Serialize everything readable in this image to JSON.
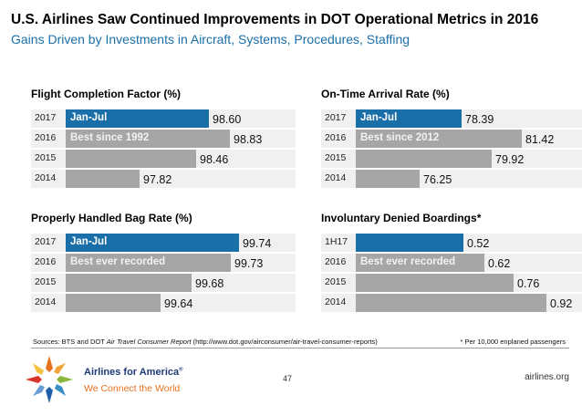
{
  "header": {
    "title": "U.S. Airlines Saw Continued Improvements in DOT Operational Metrics in 2016",
    "subtitle": "Gains Driven by Investments in Aircraft, Systems, Procedures, Staffing"
  },
  "colors": {
    "highlight": "#1b6fa8",
    "bar": "#a6a6a6",
    "track": "#f0f0f0",
    "brand": "#1f3b78",
    "tagline": "#e8711e"
  },
  "chart_data": [
    {
      "type": "bar",
      "orientation": "horizontal",
      "title": "Flight Completion Factor (%)",
      "categories": [
        "2017",
        "2016",
        "2015",
        "2014"
      ],
      "values": [
        98.6,
        98.83,
        98.46,
        97.82
      ],
      "value_labels": [
        "98.60",
        "98.83",
        "98.46",
        "97.82"
      ],
      "annotations": [
        "Jan-Jul",
        "Best since 1992",
        "",
        ""
      ],
      "highlight": [
        true,
        false,
        false,
        false
      ],
      "scale": "linear",
      "vmin": 97.0,
      "vmax": 99.2
    },
    {
      "type": "bar",
      "orientation": "horizontal",
      "title": "On-Time Arrival Rate (%)",
      "categories": [
        "2017",
        "2016",
        "2015",
        "2014"
      ],
      "values": [
        78.39,
        81.42,
        79.92,
        76.25
      ],
      "value_labels": [
        "78.39",
        "81.42",
        "79.92",
        "76.25"
      ],
      "annotations": [
        "Jan-Jul",
        "Best since 2012",
        "",
        ""
      ],
      "highlight": [
        true,
        false,
        false,
        false
      ],
      "scale": "linear",
      "vmin": 73.0,
      "vmax": 83.0
    },
    {
      "type": "bar",
      "orientation": "horizontal",
      "title": "Properly Handled Bag Rate (%)",
      "categories": [
        "2017",
        "2016",
        "2015",
        "2014"
      ],
      "values": [
        99.74,
        99.73,
        99.68,
        99.64
      ],
      "value_labels": [
        "99.74",
        "99.73",
        "99.68",
        "99.64"
      ],
      "annotations": [
        "Jan-Jul",
        "Best ever recorded",
        "",
        ""
      ],
      "highlight": [
        true,
        false,
        false,
        false
      ],
      "scale": "linear",
      "vmin": 99.52,
      "vmax": 99.77
    },
    {
      "type": "bar",
      "orientation": "horizontal",
      "title": "Involuntary Denied Boardings*",
      "categories": [
        "1H17",
        "2016",
        "2015",
        "2014"
      ],
      "values": [
        0.52,
        0.62,
        0.76,
        0.92
      ],
      "value_labels": [
        "0.52",
        "0.62",
        "0.76",
        "0.92"
      ],
      "annotations": [
        "",
        "Best ever recorded",
        "",
        ""
      ],
      "highlight": [
        true,
        false,
        false,
        false
      ],
      "scale": "linear",
      "vmin": 0.0,
      "vmax": 0.95
    }
  ],
  "footer": {
    "sources_prefix": "Sources: BTS and DOT ",
    "sources_italic": "Air Travel Consumer Report",
    "sources_suffix": " (http://www.dot.gov/airconsumer/air-travel-consumer-reports)",
    "footnote": "* Per 10,000 enplaned passengers",
    "brand": "Airlines for America",
    "brand_mark": "®",
    "tagline": "We Connect the World",
    "page_number": "47",
    "website": "airlines.org"
  }
}
